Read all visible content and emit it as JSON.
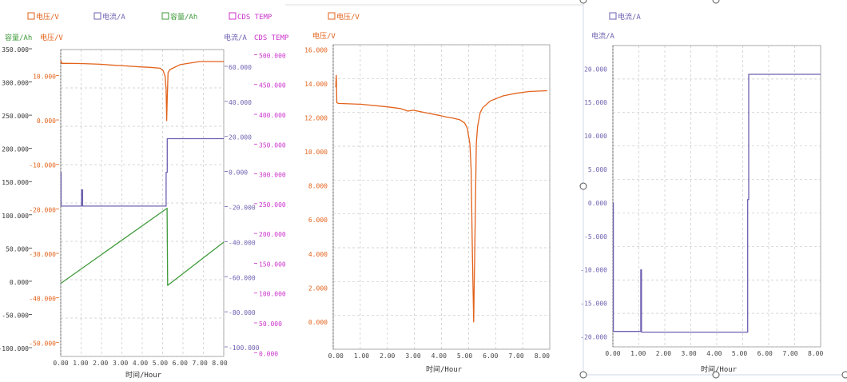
{
  "colors": {
    "voltage": "#E2621B",
    "current": "#6E5FB0",
    "capacity": "#3F9A3A",
    "temp": "#CC33CC",
    "grid": "#c8c8c8",
    "axis": "#666666",
    "frame_blue": "#cfd8e8"
  },
  "legend": {
    "voltage": "电压/V",
    "current": "电流/A",
    "capacity": "容量/Ah",
    "temp": "CDS TEMP"
  },
  "chart1": {
    "axis_titles": {
      "capacity": "容量/Ah",
      "voltage": "电压/V",
      "current": "电流/A",
      "temp": "CDS TEMP"
    },
    "xlabel": "时间/Hour"
  },
  "chart2": {
    "ylabel": "电压/V",
    "xlabel": "时间/Hour"
  },
  "chart3": {
    "ylabel": "电流/A",
    "xlabel": "时间/Hour"
  },
  "chart_data": [
    {
      "type": "line",
      "xlabel": "时间/Hour",
      "x_ticks": [
        "0.00",
        "1.00",
        "2.00",
        "3.00",
        "4.00",
        "5.00",
        "6.00",
        "7.00",
        "8.00"
      ],
      "xlim": [
        0,
        8.2
      ],
      "axes": {
        "capacity": {
          "label": "容量/Ah",
          "lim": [
            -112,
            350
          ],
          "ticks": [
            "-100.000",
            "-50.000",
            "0.000",
            "50.000",
            "100.000",
            "150.000",
            "200.000",
            "250.000",
            "300.000",
            "350.000"
          ]
        },
        "voltage": {
          "label": "电压/V",
          "lim": [
            -53,
            16
          ],
          "ticks": [
            "-50.000",
            "-40.000",
            "-30.000",
            "-20.000",
            "-10.000",
            "0.000",
            "10.000"
          ]
        },
        "current": {
          "label": "电流/A",
          "lim": [
            -105,
            70
          ],
          "ticks": [
            "-100.000",
            "-80.000",
            "-60.000",
            "-40.000",
            "-20.000",
            "0.000",
            "20.000",
            "40.000",
            "60.000"
          ]
        },
        "temp": {
          "label": "CDS TEMP",
          "lim": [
            -5,
            510
          ],
          "ticks": [
            "0.000",
            "50.000",
            "100.000",
            "150.000",
            "200.000",
            "250.000",
            "300.000",
            "350.000",
            "400.000",
            "450.000",
            "500.000"
          ]
        }
      },
      "series": [
        {
          "name": "电压/V",
          "axis": "voltage",
          "x": [
            0,
            0.05,
            0.3,
            1,
            2,
            2.8,
            3,
            4,
            4.5,
            5,
            5.15,
            5.25,
            5.3,
            5.33,
            5.36,
            5.4,
            5.5,
            6,
            7,
            8.2
          ],
          "y": [
            13.6,
            12.9,
            12.9,
            12.85,
            12.7,
            12.45,
            12.4,
            12.1,
            12.0,
            11.8,
            11.3,
            10,
            7,
            0,
            5,
            10.8,
            11.5,
            12.6,
            13.3,
            13.3
          ]
        },
        {
          "name": "电流/A",
          "axis": "current",
          "x": [
            0,
            0.02,
            0.02,
            1.05,
            1.05,
            1.1,
            1.1,
            5.3,
            5.3,
            5.36,
            5.36,
            8.2
          ],
          "y": [
            0,
            0,
            -19.3,
            -19.3,
            -10,
            -10,
            -19.3,
            -19.3,
            0,
            0,
            19.2,
            19.2
          ]
        },
        {
          "name": "容量/Ah",
          "axis": "capacity",
          "x": [
            0,
            5.35,
            5.38,
            8.2
          ],
          "y": [
            -2,
            111,
            -5,
            60
          ]
        }
      ]
    },
    {
      "type": "line",
      "xlabel": "时间/Hour",
      "ylabel": "电压/V",
      "x_ticks": [
        "0.00",
        "1.00",
        "2.00",
        "3.00",
        "4.00",
        "5.00",
        "6.00",
        "7.00",
        "8.00"
      ],
      "y_ticks": [
        "0.000",
        "2.000",
        "4.000",
        "6.000",
        "8.000",
        "10.000",
        "12.000",
        "14.000",
        "16.000"
      ],
      "xlim": [
        -0.1,
        8.3
      ],
      "ylim": [
        -1.6,
        16.3
      ],
      "series": [
        {
          "name": "电压/V",
          "x": [
            0,
            0.02,
            0.04,
            0.1,
            1,
            2,
            2.5,
            2.8,
            3,
            3.5,
            4,
            4.3,
            4.5,
            4.8,
            5,
            5.1,
            5.2,
            5.25,
            5.3,
            5.35,
            5.4,
            5.45,
            5.5,
            5.6,
            5.7,
            6,
            6.5,
            7,
            7.5,
            8.2
          ],
          "y": [
            13.8,
            14.5,
            12.9,
            12.85,
            12.8,
            12.65,
            12.55,
            12.4,
            12.45,
            12.3,
            12.15,
            12.05,
            12.0,
            11.9,
            11.7,
            11.4,
            10.5,
            9,
            4,
            0,
            5,
            10.5,
            11.5,
            12.3,
            12.6,
            13.0,
            13.3,
            13.45,
            13.55,
            13.6
          ]
        }
      ]
    },
    {
      "type": "line",
      "xlabel": "时间/Hour",
      "ylabel": "电流/A",
      "x_ticks": [
        "0.00",
        "1.00",
        "2.00",
        "3.00",
        "4.00",
        "5.00",
        "6.00",
        "7.00",
        "8.00"
      ],
      "y_ticks": [
        "-20.000",
        "-15.000",
        "-10.000",
        "-5.000",
        "0.000",
        "5.000",
        "10.000",
        "15.000",
        "20.000"
      ],
      "xlim": [
        0,
        8.2
      ],
      "ylim": [
        -21.5,
        23.5
      ],
      "series": [
        {
          "name": "电流/A",
          "x": [
            0,
            0.02,
            0.02,
            1.1,
            1.1,
            1.13,
            1.13,
            5.32,
            5.32,
            5.36,
            5.36,
            8.2
          ],
          "y": [
            0,
            0,
            -19.2,
            -19.2,
            -10,
            -10,
            -19.3,
            -19.3,
            0.5,
            0.5,
            19.2,
            19.2
          ]
        }
      ]
    }
  ]
}
